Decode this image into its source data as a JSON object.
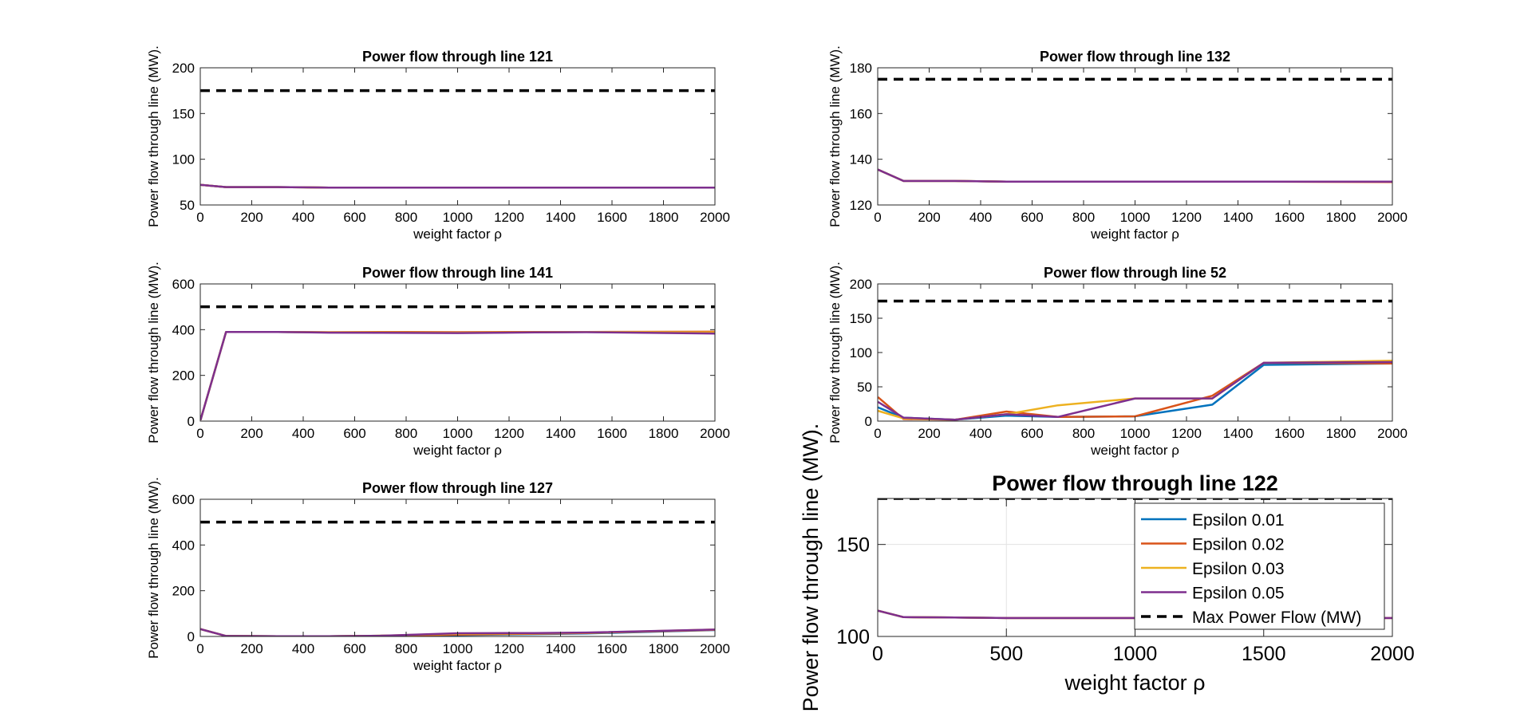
{
  "chart_data": [
    {
      "type": "line",
      "title": "Power flow through line 121",
      "xlabel": "weight factor ρ",
      "ylabel": "Power flow through line (MW).",
      "xlim": [
        0,
        2000
      ],
      "ylim": [
        50,
        200
      ],
      "xticks": [
        0,
        200,
        400,
        600,
        800,
        1000,
        1200,
        1400,
        1600,
        1800,
        2000
      ],
      "yticks": [
        50,
        100,
        150,
        200
      ],
      "grid": false,
      "x": [
        1,
        100,
        300,
        500,
        700,
        1000,
        1300,
        1500,
        2000
      ],
      "series": [
        {
          "name": "Epsilon 0.01",
          "color": "#0072BD",
          "values": [
            72,
            69.5,
            69.5,
            69,
            69,
            69,
            69,
            69,
            69
          ]
        },
        {
          "name": "Epsilon 0.02",
          "color": "#D95319",
          "values": [
            72,
            69.5,
            69.5,
            69,
            69,
            69,
            69,
            69,
            69
          ]
        },
        {
          "name": "Epsilon 0.03",
          "color": "#EDB120",
          "values": [
            72,
            69.5,
            69.5,
            69,
            69,
            69,
            69,
            69,
            69
          ]
        },
        {
          "name": "Epsilon 0.05",
          "color": "#7E2F8E",
          "values": [
            72,
            69.5,
            69.5,
            69,
            69,
            69,
            69,
            69,
            69
          ]
        }
      ],
      "max_flow": {
        "name": "Max Power Flow (MW)",
        "value": 175
      }
    },
    {
      "type": "line",
      "title": "Power flow through line 132",
      "xlabel": "weight factor ρ",
      "ylabel": "Power flow through line (MW).",
      "xlim": [
        0,
        2000
      ],
      "ylim": [
        120,
        180
      ],
      "xticks": [
        0,
        200,
        400,
        600,
        800,
        1000,
        1200,
        1400,
        1600,
        1800,
        2000
      ],
      "yticks": [
        120,
        140,
        160,
        180
      ],
      "grid": false,
      "x": [
        1,
        100,
        300,
        500,
        700,
        1000,
        1300,
        1500,
        2000
      ],
      "series": [
        {
          "name": "Epsilon 0.01",
          "color": "#0072BD",
          "values": [
            135.5,
            130.5,
            130.5,
            130.2,
            130.2,
            130.2,
            130.2,
            130.2,
            130.2
          ]
        },
        {
          "name": "Epsilon 0.02",
          "color": "#D95319",
          "values": [
            135.5,
            130.5,
            130.5,
            130.2,
            130.2,
            130.2,
            130.2,
            130.2,
            130.0
          ]
        },
        {
          "name": "Epsilon 0.03",
          "color": "#EDB120",
          "values": [
            135.5,
            130.5,
            130.5,
            130.2,
            130.2,
            130.2,
            130.2,
            130.2,
            130.2
          ]
        },
        {
          "name": "Epsilon 0.05",
          "color": "#7E2F8E",
          "values": [
            135.5,
            130.5,
            130.5,
            130.2,
            130.2,
            130.2,
            130.2,
            130.2,
            130.2
          ]
        }
      ],
      "max_flow": {
        "name": "Max Power Flow (MW)",
        "value": 175
      }
    },
    {
      "type": "line",
      "title": "Power flow through line 141",
      "xlabel": "weight factor ρ",
      "ylabel": "Power flow through line (MW).",
      "xlim": [
        0,
        2000
      ],
      "ylim": [
        0,
        600
      ],
      "xticks": [
        0,
        200,
        400,
        600,
        800,
        1000,
        1200,
        1400,
        1600,
        1800,
        2000
      ],
      "yticks": [
        0,
        200,
        400,
        600
      ],
      "grid": false,
      "x": [
        1,
        100,
        300,
        500,
        700,
        1000,
        1300,
        1500,
        2000
      ],
      "series": [
        {
          "name": "Epsilon 0.01",
          "color": "#0072BD",
          "values": [
            5,
            390,
            390,
            388,
            388,
            387,
            389,
            390,
            385
          ]
        },
        {
          "name": "Epsilon 0.02",
          "color": "#D95319",
          "values": [
            5,
            390,
            390,
            389,
            390,
            389,
            390,
            390,
            391
          ]
        },
        {
          "name": "Epsilon 0.03",
          "color": "#EDB120",
          "values": [
            5,
            390,
            390,
            388,
            388,
            387,
            389,
            390,
            388
          ]
        },
        {
          "name": "Epsilon 0.05",
          "color": "#7E2F8E",
          "values": [
            5,
            390,
            390,
            387,
            386,
            385,
            388,
            389,
            383
          ]
        }
      ],
      "max_flow": {
        "name": "Max Power Flow (MW)",
        "value": 500
      }
    },
    {
      "type": "line",
      "title": "Power flow through line 52",
      "xlabel": "weight factor ρ",
      "ylabel": "Power flow through line (MW).",
      "xlim": [
        0,
        2000
      ],
      "ylim": [
        0,
        200
      ],
      "xticks": [
        0,
        200,
        400,
        600,
        800,
        1000,
        1200,
        1400,
        1600,
        1800,
        2000
      ],
      "yticks": [
        0,
        50,
        100,
        150,
        200
      ],
      "grid": false,
      "x": [
        1,
        100,
        300,
        500,
        700,
        1000,
        1300,
        1500,
        2000
      ],
      "series": [
        {
          "name": "Epsilon 0.01",
          "color": "#0072BD",
          "values": [
            20,
            5,
            2,
            8,
            6,
            7,
            24,
            82,
            84
          ]
        },
        {
          "name": "Epsilon 0.02",
          "color": "#D95319",
          "values": [
            35,
            3,
            2,
            14,
            6,
            7,
            37,
            85,
            84
          ]
        },
        {
          "name": "Epsilon 0.03",
          "color": "#EDB120",
          "values": [
            15,
            4,
            2,
            10,
            23,
            33,
            33,
            85,
            88
          ]
        },
        {
          "name": "Epsilon 0.05",
          "color": "#7E2F8E",
          "values": [
            28,
            5,
            2,
            10,
            6,
            33,
            33,
            85,
            86
          ]
        }
      ],
      "max_flow": {
        "name": "Max Power Flow (MW)",
        "value": 175
      }
    },
    {
      "type": "line",
      "title": "Power flow through line 127",
      "xlabel": "weight factor ρ",
      "ylabel": "Power flow through line (MW).",
      "xlim": [
        0,
        2000
      ],
      "ylim": [
        0,
        600
      ],
      "xticks": [
        0,
        200,
        400,
        600,
        800,
        1000,
        1200,
        1400,
        1600,
        1800,
        2000
      ],
      "yticks": [
        0,
        200,
        400,
        600
      ],
      "grid": false,
      "x": [
        1,
        100,
        300,
        500,
        700,
        1000,
        1300,
        1500,
        2000
      ],
      "series": [
        {
          "name": "Epsilon 0.01",
          "color": "#0072BD",
          "values": [
            32,
            2,
            1,
            1,
            3,
            6,
            10,
            13,
            28
          ]
        },
        {
          "name": "Epsilon 0.02",
          "color": "#D95319",
          "values": [
            32,
            2,
            1,
            1,
            3,
            8,
            12,
            15,
            29
          ]
        },
        {
          "name": "Epsilon 0.03",
          "color": "#EDB120",
          "values": [
            32,
            2,
            1,
            1,
            3,
            12,
            14,
            16,
            30
          ]
        },
        {
          "name": "Epsilon 0.05",
          "color": "#7E2F8E",
          "values": [
            32,
            2,
            1,
            1,
            3,
            14,
            15,
            17,
            30
          ]
        }
      ],
      "max_flow": {
        "name": "Max Power Flow (MW)",
        "value": 500
      }
    },
    {
      "type": "line",
      "title": "Power flow through line 122",
      "xlabel": "weight factor ρ",
      "ylabel": "Power flow through line (MW).",
      "xlim": [
        0,
        2000
      ],
      "ylim": [
        100,
        175
      ],
      "xticks": [
        0,
        500,
        1000,
        1500,
        2000
      ],
      "yticks": [
        100,
        150
      ],
      "grid": true,
      "legend_position": "top-right",
      "x": [
        1,
        100,
        300,
        500,
        700,
        1000,
        1300,
        1500,
        2000
      ],
      "series": [
        {
          "name": "Epsilon 0.01",
          "color": "#0072BD",
          "values": [
            114,
            110.5,
            110.3,
            110,
            110,
            110,
            110,
            110,
            110
          ]
        },
        {
          "name": "Epsilon 0.02",
          "color": "#D95319",
          "values": [
            114,
            110.5,
            110.3,
            110,
            110,
            110,
            110,
            110,
            110
          ]
        },
        {
          "name": "Epsilon 0.03",
          "color": "#EDB120",
          "values": [
            114,
            110.5,
            110.3,
            110,
            110,
            110,
            110,
            110,
            110
          ]
        },
        {
          "name": "Epsilon 0.05",
          "color": "#7E2F8E",
          "values": [
            114,
            110.5,
            110.3,
            110,
            110,
            110,
            110,
            110,
            110
          ]
        }
      ],
      "max_flow": {
        "name": "Max Power Flow (MW)",
        "value": 175
      }
    }
  ]
}
